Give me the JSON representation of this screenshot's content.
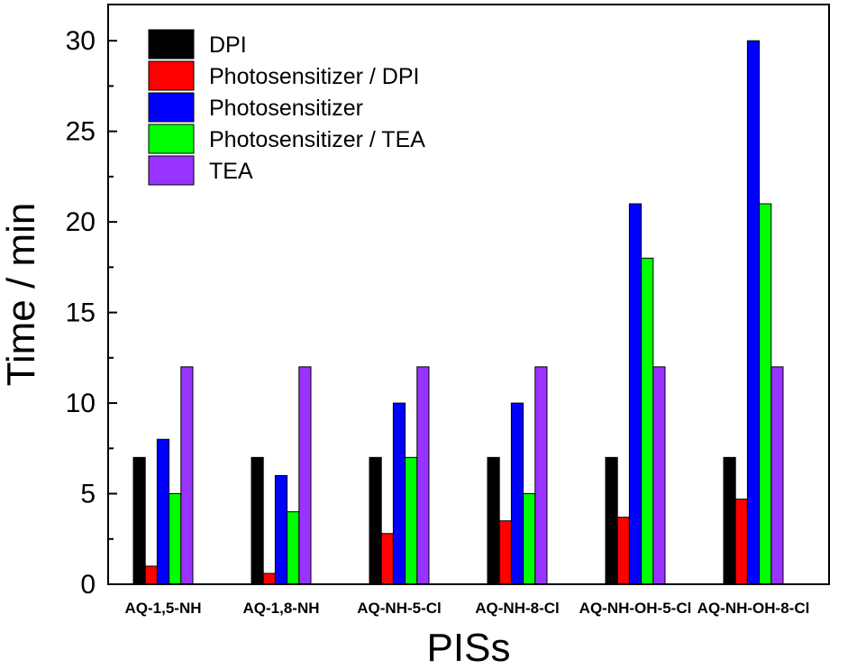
{
  "chart_data": {
    "type": "bar",
    "title": "",
    "xlabel": "PISs",
    "ylabel": "Time / min",
    "ylim": [
      0,
      32
    ],
    "yticks": [
      0,
      5,
      10,
      15,
      20,
      25,
      30
    ],
    "legend_position": "top-left",
    "categories": [
      "AQ-1,5-NH",
      "AQ-1,8-NH",
      "AQ-NH-5-Cl",
      "AQ-NH-8-Cl",
      "AQ-NH-OH-5-Cl",
      "AQ-NH-OH-8-Cl"
    ],
    "series": [
      {
        "name": "DPI",
        "color": "#000000",
        "values": [
          7,
          7,
          7,
          7,
          7,
          7
        ]
      },
      {
        "name": "Photosensitizer / DPI",
        "color": "#ff0000",
        "values": [
          1,
          0.6,
          2.8,
          3.5,
          3.7,
          4.7
        ]
      },
      {
        "name": "Photosensitizer",
        "color": "#0000ff",
        "values": [
          8,
          6,
          10,
          10,
          21,
          30
        ]
      },
      {
        "name": "Photosensitizer / TEA",
        "color": "#00ff00",
        "values": [
          5,
          4,
          7,
          5,
          18,
          21
        ]
      },
      {
        "name": "TEA",
        "color": "#9933ff",
        "values": [
          12,
          12,
          12,
          12,
          12,
          12
        ]
      }
    ]
  }
}
